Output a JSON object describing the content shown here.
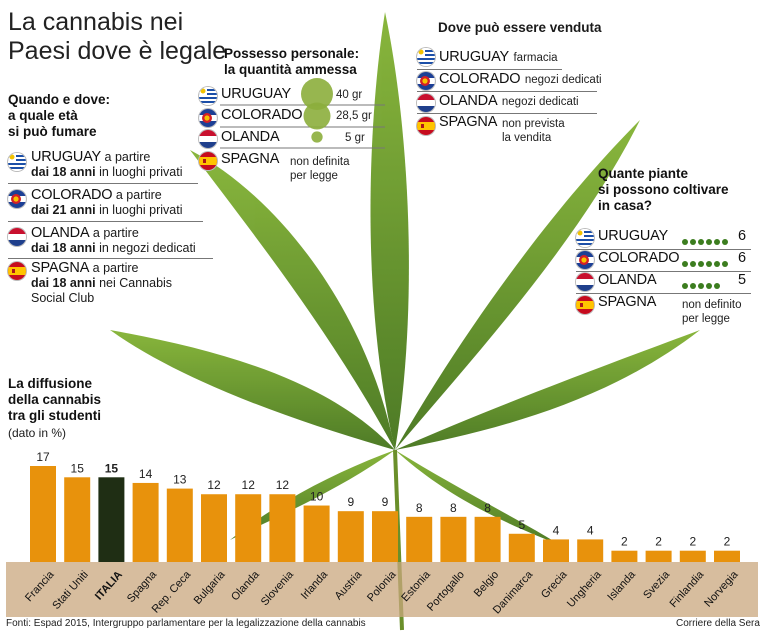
{
  "header": {
    "title": "La cannabis nei Paesi dove è legale"
  },
  "smoking": {
    "title_lines": [
      "Quando e dove:",
      "a quale età",
      "si può fumare"
    ],
    "items": [
      {
        "country": "URUGUAY",
        "l1": "a partire",
        "age": "dai 18 anni",
        "place": "in luoghi privati"
      },
      {
        "country": "COLORADO",
        "l1": "a partire",
        "age": "dai 21 anni",
        "place": "in luoghi privati"
      },
      {
        "country": "OLANDA",
        "l1": "a partire",
        "age": "dai 18 anni",
        "place": "in negozi dedicati"
      },
      {
        "country": "SPAGNA",
        "l1": "a partire",
        "age": "dai 18 anni",
        "place": "nei Cannabis",
        "place2": "Social Club"
      }
    ]
  },
  "possession": {
    "title_lines": [
      "Possesso personale:",
      "la quantità ammessa"
    ],
    "items": [
      {
        "country": "URUGUAY",
        "amount": 40,
        "label": "40 gr"
      },
      {
        "country": "COLORADO",
        "amount": 28.5,
        "label": "28,5 gr"
      },
      {
        "country": "OLANDA",
        "amount": 5,
        "label": "5 gr"
      },
      {
        "country": "SPAGNA",
        "label": "non definita",
        "label2": "per legge"
      }
    ]
  },
  "sale": {
    "title": "Dove può essere venduta",
    "items": [
      {
        "country": "URUGUAY",
        "place": "farmacia"
      },
      {
        "country": "COLORADO",
        "place": "negozi dedicati"
      },
      {
        "country": "OLANDA",
        "place": "negozi dedicati"
      },
      {
        "country": "SPAGNA",
        "place": "non prevista",
        "place2": "la vendita"
      }
    ]
  },
  "plants": {
    "title_lines": [
      "Quante piante",
      "si possono coltivare",
      "in casa?"
    ],
    "items": [
      {
        "country": "URUGUAY",
        "count": 6,
        "label": "6"
      },
      {
        "country": "COLORADO",
        "count": 6,
        "label": "6"
      },
      {
        "country": "OLANDA",
        "count": 5,
        "label": "5"
      },
      {
        "country": "SPAGNA",
        "label": "non definito",
        "label2": "per legge"
      }
    ]
  },
  "chart_data": {
    "type": "bar",
    "title_lines": [
      "La diffusione",
      "della cannabis",
      "tra gli studenti"
    ],
    "unit": "(dato in %)",
    "ylim": [
      0,
      17
    ],
    "highlight": "ITALIA",
    "categories": [
      "Francia",
      "Stati Uniti",
      "ITALIA",
      "Spagna",
      "Rep. Ceca",
      "Bulgaria",
      "Olanda",
      "Slovenia",
      "Irlanda",
      "Austria",
      "Polonia",
      "Estonia",
      "Portogallo",
      "Belgio",
      "Danimarca",
      "Grecia",
      "Ungheria",
      "Islanda",
      "Svezia",
      "Finlandia",
      "Norvegia"
    ],
    "values": [
      17,
      15,
      15,
      14,
      13,
      12,
      12,
      12,
      10,
      9,
      9,
      8,
      8,
      8,
      5,
      4,
      4,
      2,
      2,
      2,
      2
    ]
  },
  "footer": {
    "sources": "Fonti: Espad 2015, Intergruppo parlamentare per la legalizzazione della cannabis",
    "credit": "Corriere della Sera"
  },
  "colors": {
    "bar": "#e8920c",
    "highlight": "#1f2e14",
    "dots": "#3c7d1f",
    "leaf": "#5a8f1e",
    "band": "#c9a77d"
  }
}
